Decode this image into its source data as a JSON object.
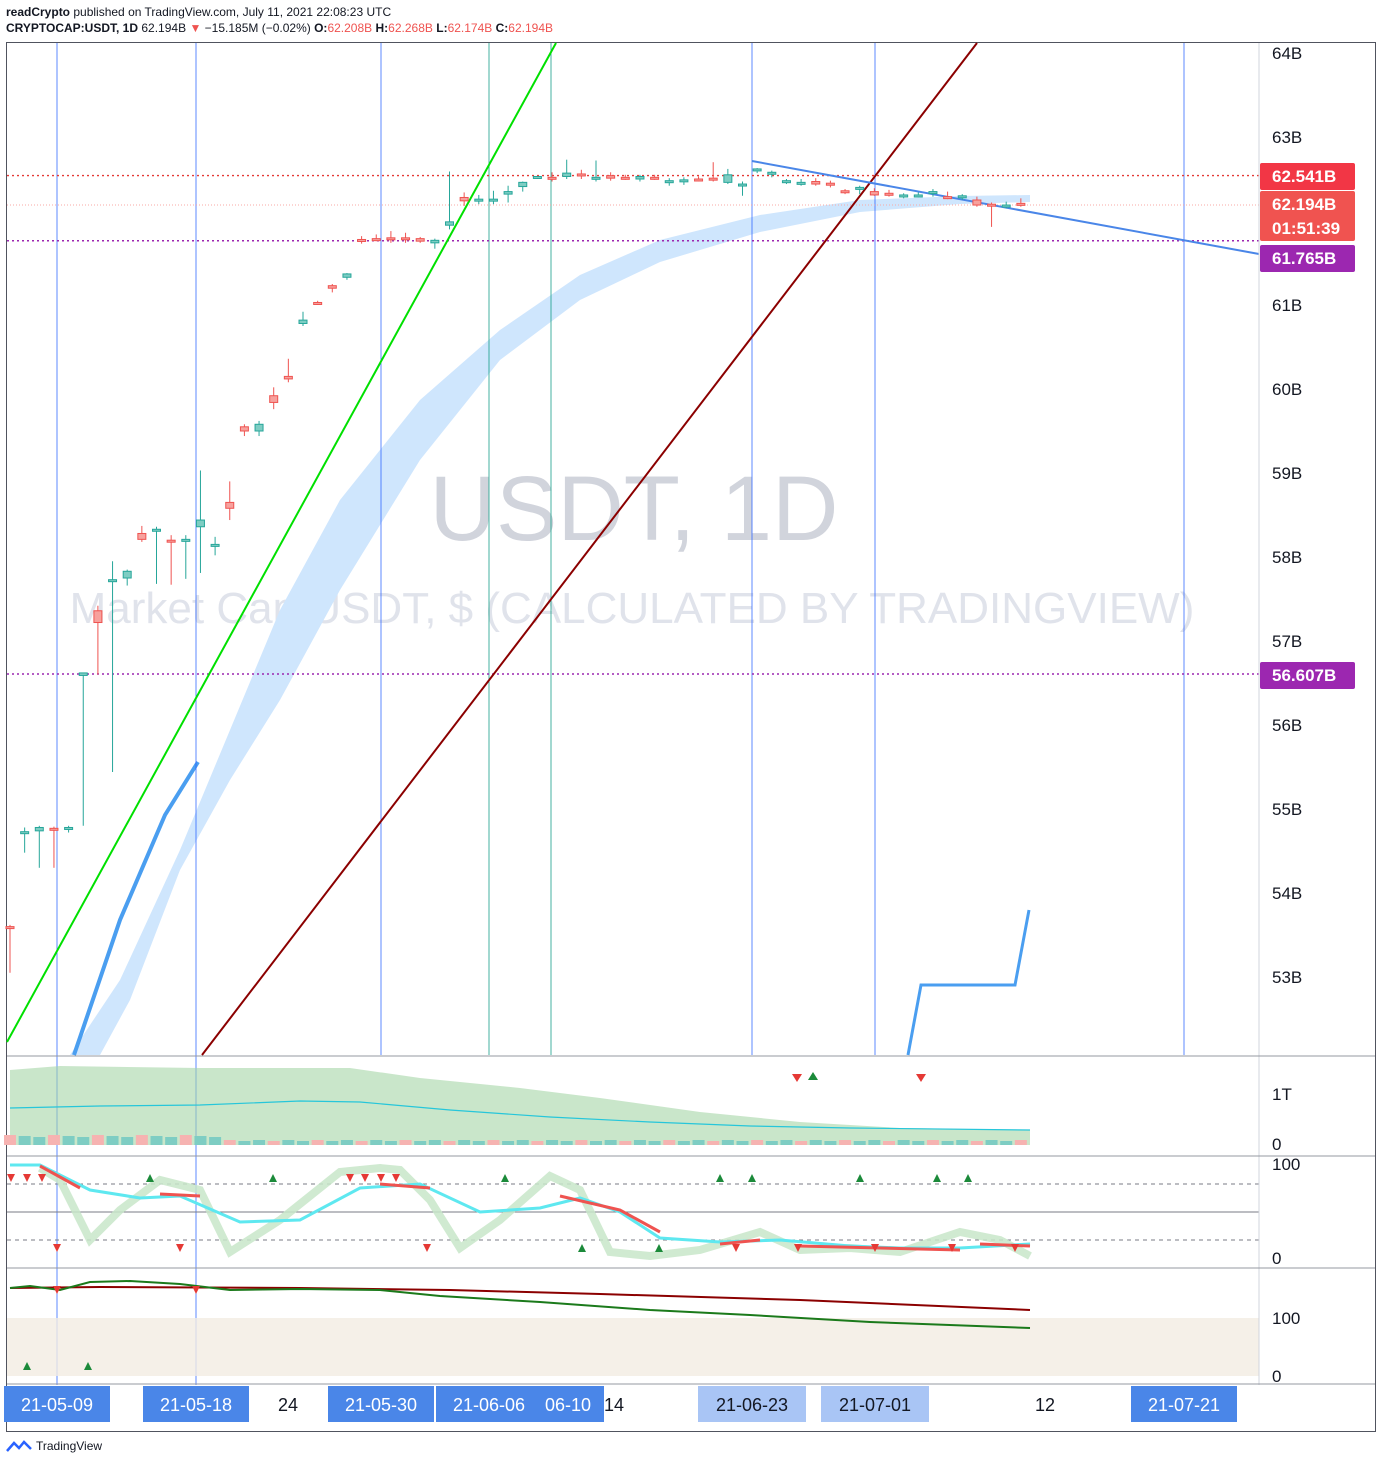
{
  "header": {
    "publisher": "readCrypto",
    "published_text": "published on TradingView.com, July 11, 2021 22:08:23 UTC",
    "symbol": "CRYPTOCAP:USDT, 1D",
    "last": "62.194B",
    "change": "−15.185M (−0.02%)",
    "o_label": "O:",
    "o": "62.208B",
    "h_label": "H:",
    "h": "62.268B",
    "l_label": "L:",
    "l": "62.174B",
    "c_label": "C:",
    "c": "62.194B"
  },
  "watermark": {
    "title": "USDT, 1D",
    "subtitle": "Market Cap USDT, $ (CALCULATED BY TRADINGVIEW)"
  },
  "price_tags": {
    "resistance": "62.541B",
    "last_price": "62.194B",
    "countdown": "01:51:39",
    "support_high": "61.765B",
    "support_low": "56.607B"
  },
  "footer": {
    "brand": "TradingView"
  },
  "colors": {
    "up": "#26a69a",
    "down": "#ef5350",
    "tag_red": "#f23645",
    "tag_purple": "#9c27b0",
    "vline": "#2962ff",
    "vline_green": "#089981",
    "channel_green": "#00e000",
    "channel_dark": "#8b0000",
    "band": "#cfe6fd"
  },
  "chart_data": {
    "type": "candlestick",
    "title": "USDT, 1D",
    "y_axis": {
      "unit": "B USD",
      "range": [
        52.1,
        64.2
      ],
      "tick_labels": [
        "64B",
        "63B",
        "61B",
        "60B",
        "59B",
        "58B",
        "57B",
        "56B",
        "55B",
        "54B",
        "53B"
      ]
    },
    "x_axis_labels": [
      "21-05-09",
      "21-05-18",
      "24",
      "21-05-30",
      "21-06-06",
      "06-10",
      "14",
      "21-06-23",
      "21-07-01",
      "12",
      "21-07-21"
    ],
    "candles": [
      {
        "o": 53.6,
        "h": 53.62,
        "l": 53.05,
        "c": 53.58
      },
      {
        "o": 54.72,
        "h": 54.78,
        "l": 54.48,
        "c": 54.73
      },
      {
        "o": 54.74,
        "h": 54.8,
        "l": 54.3,
        "c": 54.78
      },
      {
        "o": 54.77,
        "h": 54.79,
        "l": 54.3,
        "c": 54.76
      },
      {
        "o": 54.77,
        "h": 54.8,
        "l": 54.72,
        "c": 54.78
      },
      {
        "o": 56.59,
        "h": 56.62,
        "l": 54.8,
        "c": 56.62
      },
      {
        "o": 57.36,
        "h": 57.42,
        "l": 56.6,
        "c": 57.22
      },
      {
        "o": 57.72,
        "h": 57.95,
        "l": 55.44,
        "c": 57.73
      },
      {
        "o": 57.75,
        "h": 57.85,
        "l": 57.66,
        "c": 57.83
      },
      {
        "o": 58.28,
        "h": 58.37,
        "l": 58.18,
        "c": 58.21
      },
      {
        "o": 58.32,
        "h": 58.36,
        "l": 57.68,
        "c": 58.33
      },
      {
        "o": 58.2,
        "h": 58.26,
        "l": 57.67,
        "c": 58.19
      },
      {
        "o": 58.19,
        "h": 58.26,
        "l": 57.74,
        "c": 58.21
      },
      {
        "o": 58.36,
        "h": 59.03,
        "l": 57.81,
        "c": 58.44
      },
      {
        "o": 58.14,
        "h": 58.24,
        "l": 58.02,
        "c": 58.15
      },
      {
        "o": 58.65,
        "h": 58.9,
        "l": 58.44,
        "c": 58.58
      },
      {
        "o": 59.55,
        "h": 59.58,
        "l": 59.44,
        "c": 59.5
      },
      {
        "o": 59.5,
        "h": 59.62,
        "l": 59.44,
        "c": 59.58
      },
      {
        "o": 59.92,
        "h": 60.02,
        "l": 59.76,
        "c": 59.84
      },
      {
        "o": 60.15,
        "h": 60.36,
        "l": 60.08,
        "c": 60.12
      },
      {
        "o": 60.78,
        "h": 60.92,
        "l": 60.75,
        "c": 60.82
      },
      {
        "o": 61.03,
        "h": 61.05,
        "l": 61.0,
        "c": 61.02
      },
      {
        "o": 61.23,
        "h": 61.25,
        "l": 61.15,
        "c": 61.2
      },
      {
        "o": 61.33,
        "h": 61.38,
        "l": 61.3,
        "c": 61.37
      },
      {
        "o": 61.78,
        "h": 61.82,
        "l": 61.73,
        "c": 61.77
      },
      {
        "o": 61.79,
        "h": 61.84,
        "l": 61.76,
        "c": 61.78
      },
      {
        "o": 61.8,
        "h": 61.88,
        "l": 61.74,
        "c": 61.79
      },
      {
        "o": 61.8,
        "h": 61.86,
        "l": 61.74,
        "c": 61.78
      },
      {
        "o": 61.79,
        "h": 61.81,
        "l": 61.74,
        "c": 61.76
      },
      {
        "o": 61.74,
        "h": 61.79,
        "l": 61.67,
        "c": 61.77
      },
      {
        "o": 61.95,
        "h": 62.59,
        "l": 61.9,
        "c": 61.99
      },
      {
        "o": 62.28,
        "h": 62.34,
        "l": 62.18,
        "c": 62.24
      },
      {
        "o": 62.26,
        "h": 62.31,
        "l": 62.2,
        "c": 62.26
      },
      {
        "o": 62.25,
        "h": 62.36,
        "l": 62.2,
        "c": 62.26
      },
      {
        "o": 62.32,
        "h": 62.42,
        "l": 62.22,
        "c": 62.35
      },
      {
        "o": 62.41,
        "h": 62.47,
        "l": 62.35,
        "c": 62.46
      },
      {
        "o": 62.52,
        "h": 62.53,
        "l": 62.5,
        "c": 62.53
      },
      {
        "o": 62.52,
        "h": 62.58,
        "l": 62.47,
        "c": 62.5
      },
      {
        "o": 62.53,
        "h": 62.73,
        "l": 62.5,
        "c": 62.57
      },
      {
        "o": 62.56,
        "h": 62.61,
        "l": 62.5,
        "c": 62.55
      },
      {
        "o": 62.5,
        "h": 62.72,
        "l": 62.47,
        "c": 62.52
      },
      {
        "o": 62.54,
        "h": 62.58,
        "l": 62.48,
        "c": 62.51
      },
      {
        "o": 62.52,
        "h": 62.55,
        "l": 62.49,
        "c": 62.51
      },
      {
        "o": 62.5,
        "h": 62.55,
        "l": 62.47,
        "c": 62.53
      },
      {
        "o": 62.52,
        "h": 62.55,
        "l": 62.49,
        "c": 62.5
      },
      {
        "o": 62.46,
        "h": 62.51,
        "l": 62.42,
        "c": 62.48
      },
      {
        "o": 62.47,
        "h": 62.52,
        "l": 62.43,
        "c": 62.49
      },
      {
        "o": 62.5,
        "h": 62.53,
        "l": 62.47,
        "c": 62.49
      },
      {
        "o": 62.51,
        "h": 62.7,
        "l": 62.47,
        "c": 62.5
      },
      {
        "o": 62.46,
        "h": 62.62,
        "l": 62.44,
        "c": 62.55
      },
      {
        "o": 62.42,
        "h": 62.47,
        "l": 62.3,
        "c": 62.44
      },
      {
        "o": 62.6,
        "h": 62.63,
        "l": 62.57,
        "c": 62.62
      },
      {
        "o": 62.56,
        "h": 62.6,
        "l": 62.52,
        "c": 62.58
      },
      {
        "o": 62.47,
        "h": 62.5,
        "l": 62.44,
        "c": 62.48
      },
      {
        "o": 62.45,
        "h": 62.5,
        "l": 62.42,
        "c": 62.46
      },
      {
        "o": 62.47,
        "h": 62.51,
        "l": 62.42,
        "c": 62.44
      },
      {
        "o": 62.45,
        "h": 62.48,
        "l": 62.4,
        "c": 62.43
      },
      {
        "o": 62.36,
        "h": 62.38,
        "l": 62.32,
        "c": 62.34
      },
      {
        "o": 62.38,
        "h": 62.42,
        "l": 62.32,
        "c": 62.4
      },
      {
        "o": 62.35,
        "h": 62.39,
        "l": 62.3,
        "c": 62.31
      },
      {
        "o": 62.33,
        "h": 62.37,
        "l": 62.29,
        "c": 62.32
      },
      {
        "o": 62.3,
        "h": 62.33,
        "l": 62.27,
        "c": 62.31
      },
      {
        "o": 62.3,
        "h": 62.34,
        "l": 62.28,
        "c": 62.31
      },
      {
        "o": 62.33,
        "h": 62.38,
        "l": 62.29,
        "c": 62.35
      },
      {
        "o": 62.29,
        "h": 62.35,
        "l": 62.26,
        "c": 62.27
      },
      {
        "o": 62.28,
        "h": 62.32,
        "l": 62.25,
        "c": 62.3
      },
      {
        "o": 62.25,
        "h": 62.29,
        "l": 62.17,
        "c": 62.19
      },
      {
        "o": 62.2,
        "h": 62.22,
        "l": 61.93,
        "c": 62.19
      },
      {
        "o": 62.18,
        "h": 62.23,
        "l": 62.15,
        "c": 62.19
      },
      {
        "o": 62.21,
        "h": 62.27,
        "l": 62.17,
        "c": 62.19
      }
    ],
    "horizontal_levels": [
      62.541,
      61.765,
      56.607
    ],
    "indicator_axes": {
      "volume": [
        "1T",
        "0"
      ],
      "oscillator": [
        "100",
        "0"
      ],
      "lower": [
        "100",
        "0"
      ]
    }
  }
}
